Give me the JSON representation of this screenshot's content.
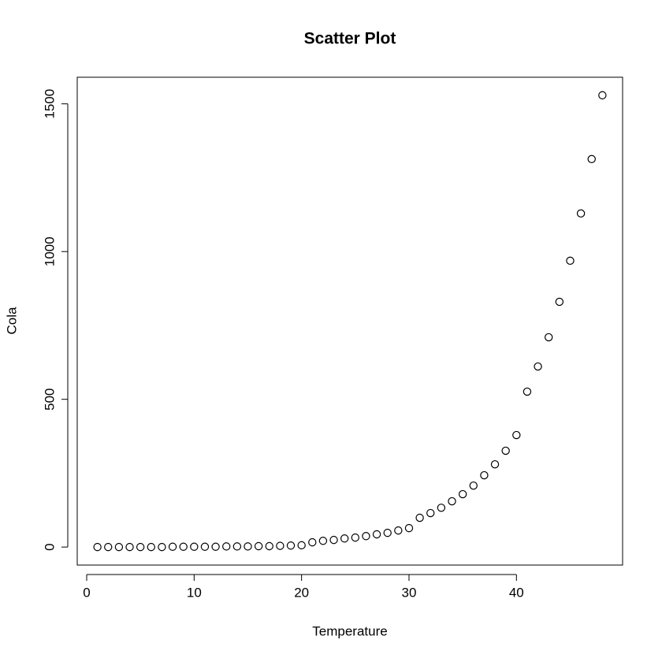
{
  "chart_data": {
    "type": "scatter",
    "title": "Scatter Plot",
    "x_label": "Temperature",
    "y_label": "Cola",
    "x": [
      1,
      2,
      3,
      4,
      5,
      6,
      7,
      8,
      9,
      10,
      11,
      12,
      13,
      14,
      15,
      16,
      17,
      18,
      19,
      20,
      21,
      22,
      23,
      24,
      25,
      26,
      27,
      28,
      29,
      30,
      31,
      32,
      33,
      34,
      35,
      36,
      37,
      38,
      39,
      40,
      41,
      42,
      43,
      44,
      45,
      46,
      47,
      48
    ],
    "values": [
      0,
      0,
      0,
      0,
      0,
      0,
      0,
      1,
      1,
      1,
      1,
      1,
      2,
      2,
      2,
      3,
      3,
      4,
      5,
      6,
      16,
      21,
      24,
      29,
      32,
      37,
      43,
      48,
      56,
      64,
      99,
      115,
      133,
      155,
      179,
      208,
      243,
      280,
      326,
      379,
      526,
      611,
      710,
      830,
      969,
      1129,
      1313,
      1529
    ],
    "color": "#000000",
    "xlim": [
      -0.88,
      49.88
    ],
    "xticks": [
      0,
      10,
      20,
      30,
      40
    ],
    "ylim": [
      -61,
      1590
    ],
    "yticks": [
      0,
      500,
      1000,
      1500
    ]
  }
}
